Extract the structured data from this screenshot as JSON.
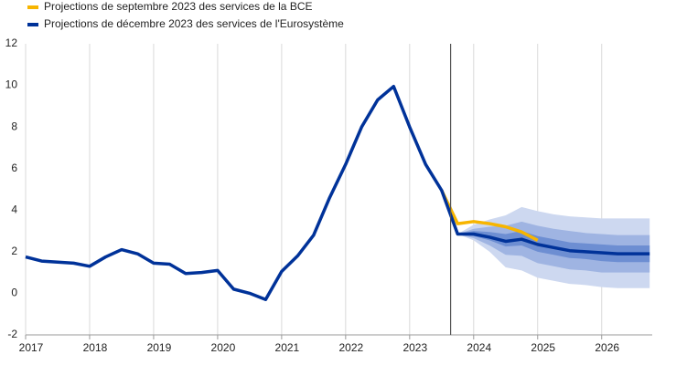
{
  "chart_data": {
    "type": "line",
    "x": [
      2017,
      2017.25,
      2017.5,
      2017.75,
      2018,
      2018.25,
      2018.5,
      2018.75,
      2019,
      2019.25,
      2019.5,
      2019.75,
      2020,
      2020.25,
      2020.5,
      2020.75,
      2021,
      2021.25,
      2021.5,
      2021.75,
      2022,
      2022.25,
      2022.5,
      2022.75,
      2023,
      2023.25,
      2023.5,
      2023.75,
      2024,
      2024.25,
      2024.5,
      2024.75,
      2025,
      2025.25,
      2025.5,
      2025.75,
      2026,
      2026.25,
      2026.5,
      2026.75
    ],
    "series": [
      {
        "name": "Projections de septembre 2023 des services de la BCE",
        "color": "#f7b500",
        "values": [
          null,
          null,
          null,
          null,
          null,
          null,
          null,
          null,
          null,
          null,
          null,
          null,
          null,
          null,
          null,
          null,
          null,
          null,
          null,
          null,
          null,
          null,
          null,
          null,
          null,
          null,
          4.95,
          3.35,
          3.45,
          3.35,
          3.2,
          2.95,
          2.55,
          null,
          null,
          null,
          null,
          null,
          null,
          null
        ]
      },
      {
        "name": "Projections de décembre 2023 des services de l'Eurosystème",
        "color": "#003299",
        "values": [
          1.75,
          1.55,
          1.5,
          1.45,
          1.3,
          1.75,
          2.1,
          1.9,
          1.45,
          1.4,
          0.95,
          1.0,
          1.1,
          0.2,
          0.0,
          -0.3,
          1.05,
          1.8,
          2.8,
          4.6,
          6.2,
          8.0,
          9.3,
          9.95,
          8.0,
          6.2,
          4.95,
          2.85,
          2.85,
          2.7,
          2.5,
          2.6,
          2.35,
          2.2,
          2.05,
          2.0,
          1.95,
          1.9,
          1.9,
          1.9
        ]
      }
    ],
    "bands": [
      {
        "color": "#cdd8f0",
        "lower": [
          null,
          null,
          null,
          null,
          null,
          null,
          null,
          null,
          null,
          null,
          null,
          null,
          null,
          null,
          null,
          null,
          null,
          null,
          null,
          null,
          null,
          null,
          null,
          null,
          null,
          null,
          null,
          2.85,
          2.55,
          2.0,
          1.25,
          1.1,
          0.75,
          0.6,
          0.45,
          0.4,
          0.3,
          0.25,
          0.25,
          0.25
        ],
        "upper": [
          null,
          null,
          null,
          null,
          null,
          null,
          null,
          null,
          null,
          null,
          null,
          null,
          null,
          null,
          null,
          null,
          null,
          null,
          null,
          null,
          null,
          null,
          null,
          null,
          null,
          null,
          null,
          2.85,
          3.3,
          3.55,
          3.75,
          4.15,
          3.95,
          3.8,
          3.7,
          3.65,
          3.6,
          3.6,
          3.6,
          3.6
        ]
      },
      {
        "color": "#9fb4e2",
        "lower": [
          null,
          null,
          null,
          null,
          null,
          null,
          null,
          null,
          null,
          null,
          null,
          null,
          null,
          null,
          null,
          null,
          null,
          null,
          null,
          null,
          null,
          null,
          null,
          null,
          null,
          null,
          null,
          2.85,
          2.65,
          2.3,
          1.85,
          1.8,
          1.45,
          1.3,
          1.15,
          1.1,
          1.0,
          1.0,
          1.0,
          1.0
        ],
        "upper": [
          null,
          null,
          null,
          null,
          null,
          null,
          null,
          null,
          null,
          null,
          null,
          null,
          null,
          null,
          null,
          null,
          null,
          null,
          null,
          null,
          null,
          null,
          null,
          null,
          null,
          null,
          null,
          2.85,
          3.1,
          3.2,
          3.25,
          3.45,
          3.25,
          3.1,
          3.0,
          2.9,
          2.85,
          2.8,
          2.8,
          2.8
        ]
      },
      {
        "color": "#6d8ed2",
        "lower": [
          null,
          null,
          null,
          null,
          null,
          null,
          null,
          null,
          null,
          null,
          null,
          null,
          null,
          null,
          null,
          null,
          null,
          null,
          null,
          null,
          null,
          null,
          null,
          null,
          null,
          null,
          null,
          2.85,
          2.75,
          2.55,
          2.25,
          2.3,
          2.0,
          1.85,
          1.7,
          1.65,
          1.55,
          1.5,
          1.5,
          1.5
        ],
        "upper": [
          null,
          null,
          null,
          null,
          null,
          null,
          null,
          null,
          null,
          null,
          null,
          null,
          null,
          null,
          null,
          null,
          null,
          null,
          null,
          null,
          null,
          null,
          null,
          null,
          null,
          null,
          null,
          2.85,
          3.0,
          2.95,
          2.85,
          3.0,
          2.75,
          2.6,
          2.45,
          2.4,
          2.35,
          2.3,
          2.3,
          2.3
        ]
      }
    ],
    "projection_start": 2023.64,
    "xlim": [
      2017,
      2026.79
    ],
    "xticks": [
      2017,
      2018,
      2019,
      2020,
      2021,
      2022,
      2023,
      2024,
      2025,
      2026
    ],
    "ylim": [
      -2,
      12
    ],
    "yticks": [
      -2,
      0,
      2,
      4,
      6,
      8,
      10,
      12
    ],
    "grid": "x",
    "legend": "top-left"
  }
}
